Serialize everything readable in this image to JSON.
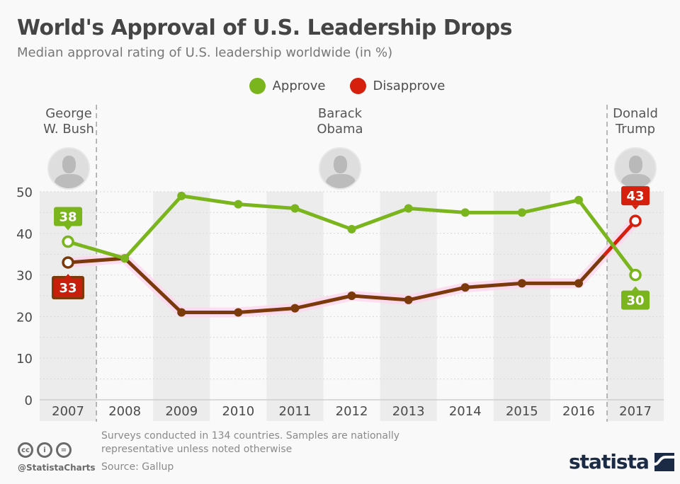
{
  "header": {
    "title": "World's Approval of U.S. Leadership Drops",
    "subtitle": "Median approval rating of U.S. leadership worldwide (in %)"
  },
  "legend": [
    {
      "label": "Approve",
      "color": "#7ab51d"
    },
    {
      "label": "Disapprove",
      "color": "#d6200e"
    }
  ],
  "presidents": [
    {
      "name_line1": "George",
      "name_line2": "W. Bush",
      "icon": "portrait-bush"
    },
    {
      "name_line1": "Barack",
      "name_line2": "Obama",
      "icon": "portrait-obama"
    },
    {
      "name_line1": "Donald",
      "name_line2": "Trump",
      "icon": "portrait-trump"
    }
  ],
  "chart_data": {
    "type": "line",
    "title": "World's Approval of U.S. Leadership Drops",
    "subtitle": "Median approval rating of U.S. leadership worldwide (in %)",
    "xlabel": "",
    "ylabel": "",
    "categories": [
      "2007",
      "2008",
      "2009",
      "2010",
      "2011",
      "2012",
      "2013",
      "2014",
      "2015",
      "2016",
      "2017"
    ],
    "series": [
      {
        "name": "Approve",
        "color": "#7ab51d",
        "values": [
          38,
          34,
          49,
          47,
          46,
          41,
          46,
          45,
          45,
          48,
          30
        ]
      },
      {
        "name": "Disapprove",
        "color": "#d6200e",
        "line_color_early": "#7a3a0c",
        "values": [
          33,
          34,
          21,
          21,
          22,
          25,
          24,
          27,
          28,
          28,
          43
        ]
      }
    ],
    "data_labels": [
      {
        "series": "Approve",
        "category": "2007",
        "text": "38"
      },
      {
        "series": "Disapprove",
        "category": "2007",
        "text": "33"
      },
      {
        "series": "Disapprove",
        "category": "2017",
        "text": "43"
      },
      {
        "series": "Approve",
        "category": "2017",
        "text": "30"
      }
    ],
    "yticks": [
      "0",
      "10",
      "20",
      "30",
      "40",
      "50"
    ],
    "ylim": [
      0,
      50
    ],
    "grid": true,
    "legend_position": "top-center",
    "presidency_dividers": [
      "between 2007 and 2008",
      "between 2016 and 2017"
    ]
  },
  "footer": {
    "note": "Surveys conducted in 134 countries. Samples are nationally representative unless noted otherwise",
    "source": "Source: Gallup",
    "handle": "@StatistaCharts",
    "license_icons": [
      "cc",
      "by",
      "nd"
    ],
    "license_glyphs": [
      "cc",
      "i",
      "="
    ],
    "brand": "statista"
  }
}
